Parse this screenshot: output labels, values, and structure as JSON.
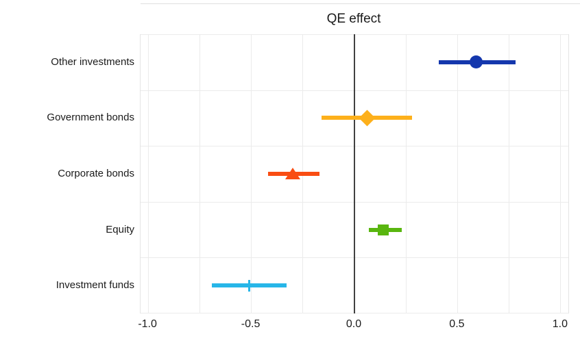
{
  "chart_data": {
    "type": "pointrange",
    "title": "QE effect",
    "xlabel": "",
    "ylabel": "",
    "xlim": [
      -1.037,
      1.037
    ],
    "grid": {
      "minor_step": 0.25,
      "major_step": 0.5,
      "zero_line": true,
      "grid_on": true
    },
    "x_ticks": [
      {
        "label": "-1.0",
        "value": -1.0
      },
      {
        "label": "-0.5",
        "value": -0.5
      },
      {
        "label": "0.0",
        "value": 0.0
      },
      {
        "label": "0.5",
        "value": 0.5
      },
      {
        "label": "1.0",
        "value": 1.0
      }
    ],
    "categories": [
      "Other investments",
      "Government bonds",
      "Corporate bonds",
      "Equity",
      "Investment funds"
    ],
    "series": [
      {
        "category": "Other investments",
        "marker": "circle",
        "color": "#1437ad",
        "estimate": 0.59,
        "ci_low": 0.41,
        "ci_high": 0.78
      },
      {
        "category": "Government bonds",
        "marker": "diamond",
        "color": "#fdb01b",
        "estimate": 0.06,
        "ci_low": -0.16,
        "ci_high": 0.28
      },
      {
        "category": "Corporate bonds",
        "marker": "triangle-up",
        "color": "#f94d13",
        "estimate": -0.3,
        "ci_low": -0.42,
        "ci_high": -0.17
      },
      {
        "category": "Equity",
        "marker": "square",
        "color": "#59b60f",
        "estimate": 0.14,
        "ci_low": 0.07,
        "ci_high": 0.23
      },
      {
        "category": "Investment funds",
        "marker": "vertical-tick",
        "color": "#27b6e8",
        "estimate": -0.51,
        "ci_low": -0.69,
        "ci_high": -0.33
      }
    ],
    "legend": {
      "visible": false
    },
    "colors": {
      "grid": "#ebebeb",
      "panel_border": "#e4e4e4",
      "zero_line": "#404040",
      "text": "#1a1a1a",
      "top_divider": "#dedede",
      "background": "#ffffff"
    }
  }
}
